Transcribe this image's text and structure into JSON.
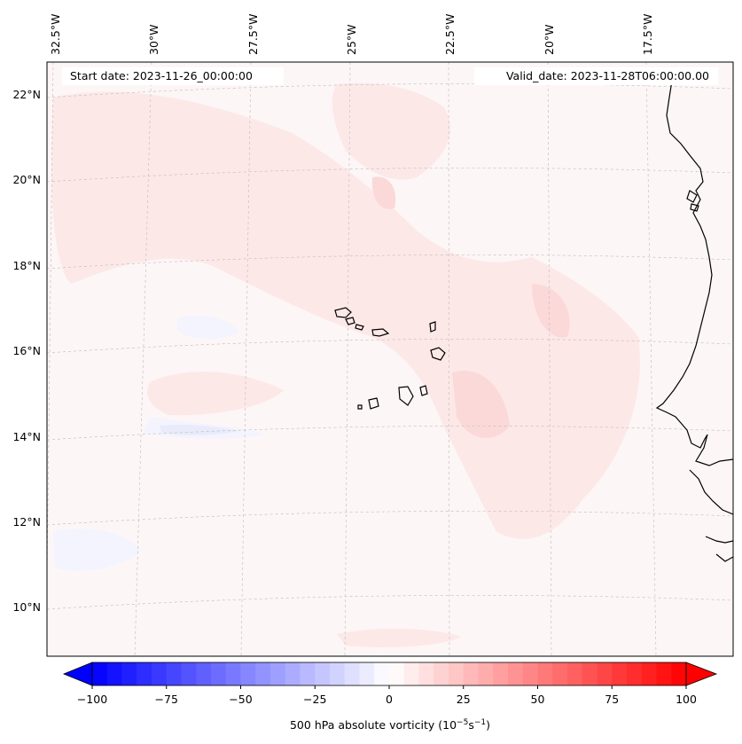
{
  "map": {
    "start_label": "Start date: 2023-11-26_00:00:00",
    "valid_label": "Valid_date: 2023-11-28T06:00:00.00",
    "lon_labels": [
      "32.5°W",
      "30°W",
      "27.5°W",
      "25°W",
      "22.5°W",
      "20°W",
      "17.5°W"
    ],
    "lat_labels": [
      "22°N",
      "20°N",
      "18°N",
      "16°N",
      "14°N",
      "12°N",
      "10°N"
    ],
    "colors": {
      "background": "#fdf6f6",
      "pos_light": "#fde8e8",
      "pos_medium": "#fbd9d9",
      "neg_light": "#f3f4fd",
      "neg_medium": "#e9ebfb",
      "coast": "#000000",
      "grid": "#bbbbbb"
    }
  },
  "colorbar": {
    "label_text": "500 hPa absolute vorticity (10",
    "label_exp1": "−5",
    "label_mid": "s",
    "label_exp2": "−1",
    "label_end": ")",
    "min": -100,
    "max": 100,
    "ticks": [
      "−100",
      "−75",
      "−50",
      "−25",
      "0",
      "25",
      "50",
      "75",
      "100"
    ],
    "low_color": "#0000ff",
    "mid_color": "#ffffff",
    "high_color": "#ff0000"
  }
}
